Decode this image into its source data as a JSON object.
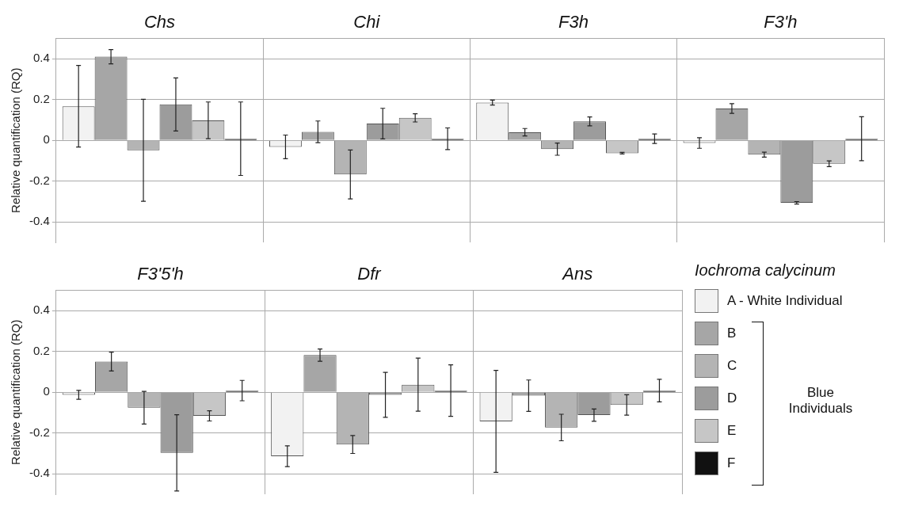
{
  "chart_data": [
    {
      "type": "bar",
      "ylabel": "Relative quantification (RQ)",
      "categories": [
        "Chs",
        "Chi",
        "F3h",
        "F3'h"
      ],
      "ylim": [
        -0.5,
        0.5
      ],
      "yticks": [
        -0.4,
        -0.2,
        0,
        0.2,
        0.4
      ],
      "grid": true,
      "series": [
        {
          "color": "#f2f2f2",
          "values": [
            0.167,
            -0.032,
            0.185,
            -0.013
          ],
          "errors": [
            0.2,
            0.058,
            0.012,
            0.026
          ]
        },
        {
          "color": "#a6a6a6",
          "values": [
            0.41,
            0.042,
            0.04,
            0.156
          ],
          "errors": [
            0.035,
            0.053,
            0.018,
            0.024
          ]
        },
        {
          "color": "#b4b4b4",
          "values": [
            -0.049,
            -0.167,
            -0.043,
            -0.07
          ],
          "errors": [
            0.25,
            0.12,
            0.03,
            0.012
          ]
        },
        {
          "color": "#9c9c9c",
          "values": [
            0.176,
            0.082,
            0.093,
            -0.306
          ],
          "errors": [
            0.13,
            0.075,
            0.022,
            0.006
          ]
        },
        {
          "color": "#c6c6c6",
          "values": [
            0.098,
            0.11,
            -0.063,
            -0.115
          ],
          "errors": [
            0.09,
            0.02,
            0.004,
            0.014
          ]
        },
        {
          "color": "#111111",
          "values": [
            0.008,
            0.008,
            0.008,
            0.008
          ],
          "errors": [
            0.18,
            0.053,
            0.023,
            0.108
          ]
        }
      ]
    },
    {
      "type": "bar",
      "ylabel": "Relative quantification (RQ)",
      "categories": [
        "F3'5'h",
        "Dfr",
        "Ans"
      ],
      "ylim": [
        -0.5,
        0.5
      ],
      "yticks": [
        -0.4,
        -0.2,
        0,
        0.2,
        0.4
      ],
      "grid": true,
      "legend": "right",
      "legend_title": "Iochroma calycinum",
      "annotations": [
        "Blue Individuals"
      ],
      "series": [
        {
          "name": "A - White Individual",
          "color": "#f2f2f2",
          "values": [
            -0.013,
            -0.314,
            -0.143
          ],
          "errors": [
            0.022,
            0.051,
            0.25
          ]
        },
        {
          "name": "B",
          "color": "#a6a6a6",
          "values": [
            0.15,
            0.182,
            -0.017
          ],
          "errors": [
            0.046,
            0.03,
            0.077
          ]
        },
        {
          "name": "C",
          "color": "#b4b4b4",
          "values": [
            -0.076,
            -0.256,
            -0.173
          ],
          "errors": [
            0.08,
            0.044,
            0.065
          ]
        },
        {
          "name": "D",
          "color": "#9c9c9c",
          "values": [
            -0.297,
            -0.013,
            -0.112
          ],
          "errors": [
            0.187,
            0.11,
            0.03
          ]
        },
        {
          "name": "E",
          "color": "#c6c6c6",
          "values": [
            -0.116,
            0.037,
            -0.062
          ],
          "errors": [
            0.025,
            0.13,
            0.05
          ]
        },
        {
          "name": "F",
          "color": "#111111",
          "values": [
            0.008,
            0.008,
            0.008
          ],
          "errors": [
            0.05,
            0.126,
            0.055
          ]
        }
      ]
    }
  ]
}
